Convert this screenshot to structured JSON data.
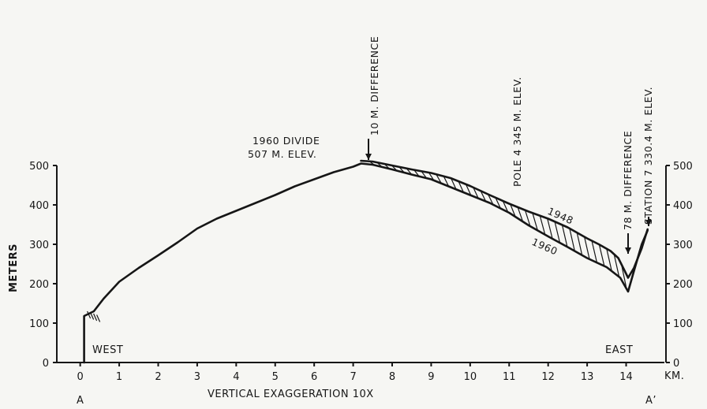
{
  "chart_data": {
    "type": "line",
    "title": "",
    "xlabel": "KM.",
    "ylabel": "METERS",
    "note": "VERTICAL EXAGGERATION 10X",
    "xlim": [
      -0.6,
      14.9
    ],
    "ylim": [
      0,
      500
    ],
    "x_ticks": [
      0,
      1,
      2,
      3,
      4,
      5,
      6,
      7,
      8,
      9,
      10,
      11,
      12,
      13,
      14
    ],
    "x_tick_labels": [
      "0",
      "1",
      "2",
      "3",
      "4",
      "5",
      "6",
      "7",
      "8",
      "9",
      "10",
      "11",
      "12",
      "13",
      "14"
    ],
    "y_ticks": [
      0,
      100,
      200,
      300,
      400,
      500
    ],
    "y_tick_labels": [
      "0",
      "100",
      "200",
      "300",
      "400",
      "500"
    ],
    "section_labels": {
      "start": "A",
      "end": "A’",
      "west": "WEST",
      "east": "EAST"
    },
    "series": [
      {
        "name": "1960",
        "x": [
          0.1,
          0.1,
          0.35,
          0.6,
          1,
          1.5,
          2,
          2.5,
          3,
          3.5,
          4,
          4.5,
          5,
          5.5,
          6,
          6.5,
          7,
          7.2,
          7.5,
          8,
          8.5,
          9,
          9.5,
          10,
          10.5,
          11,
          11.5,
          12,
          12.5,
          13,
          13.5,
          13.85,
          14.05,
          14.2,
          14.4,
          14.55
        ],
        "y": [
          0,
          118,
          130,
          162,
          205,
          240,
          272,
          305,
          340,
          365,
          385,
          405,
          425,
          447,
          465,
          483,
          497,
          505,
          502,
          490,
          477,
          465,
          445,
          425,
          405,
          380,
          348,
          320,
          293,
          265,
          242,
          215,
          180,
          232,
          300,
          335
        ]
      },
      {
        "name": "1948",
        "x": [
          7.2,
          7.5,
          8,
          8.5,
          9,
          9.5,
          10,
          10.5,
          11,
          11.5,
          12,
          12.5,
          13,
          13.3,
          13.6,
          13.8,
          13.95,
          14.05,
          14.2,
          14.4,
          14.55
        ],
        "y": [
          512,
          510,
          500,
          490,
          481,
          468,
          448,
          425,
          403,
          383,
          365,
          343,
          315,
          300,
          283,
          265,
          235,
          215,
          240,
          290,
          338
        ]
      }
    ],
    "annotations": [
      {
        "text": "1960 DIVIDE"
      },
      {
        "text": "507 M. ELEV."
      },
      {
        "text": "10 M. DIFFERENCE"
      },
      {
        "text": "POLE 4   345 M. ELEV."
      },
      {
        "text": "78 M. DIFFERENCE"
      },
      {
        "text": "STATION 7   330.4 M. ELEV."
      }
    ]
  }
}
